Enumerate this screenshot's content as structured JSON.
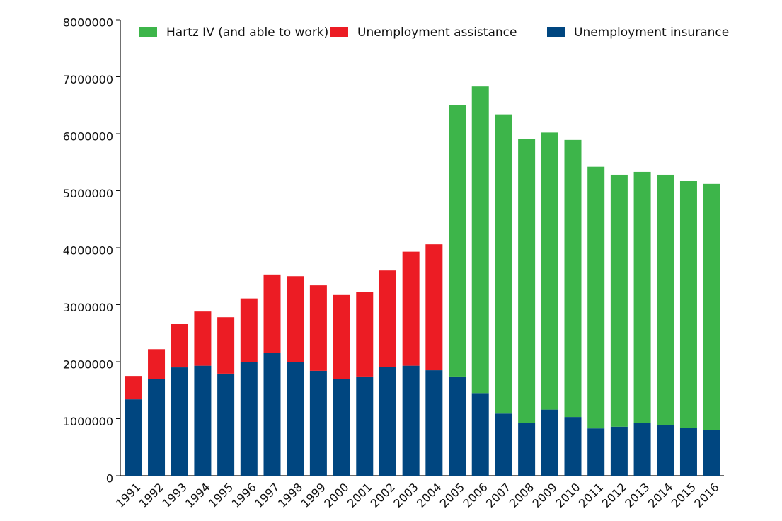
{
  "chart_data": {
    "type": "stacked_bar",
    "categories": [
      "1991",
      "1992",
      "1993",
      "1994",
      "1995",
      "1996",
      "1997",
      "1998",
      "1999",
      "2000",
      "2001",
      "2002",
      "2003",
      "2004",
      "2005",
      "2006",
      "2007",
      "2008",
      "2009",
      "2010",
      "2011",
      "2012",
      "2013",
      "2014",
      "2015",
      "2016"
    ],
    "series": [
      {
        "name": "Hartz IV (and able to work)",
        "color": "#3db54a",
        "values": [
          null,
          null,
          null,
          null,
          null,
          null,
          null,
          null,
          null,
          null,
          null,
          null,
          null,
          null,
          4760000,
          5380000,
          5250000,
          4990000,
          4860000,
          4860000,
          4590000,
          4420000,
          4410000,
          4390000,
          4340000,
          4320000
        ]
      },
      {
        "name": "Unemployment assistance",
        "color": "#ec1c24",
        "values": [
          410000,
          530000,
          760000,
          950000,
          990000,
          1110000,
          1370000,
          1500000,
          1500000,
          1470000,
          1480000,
          1690000,
          2000000,
          2210000,
          null,
          null,
          null,
          null,
          null,
          null,
          null,
          null,
          null,
          null,
          null,
          null
        ]
      },
      {
        "name": "Unemployment insurance",
        "color": "#004680",
        "values": [
          1340000,
          1690000,
          1900000,
          1930000,
          1790000,
          2000000,
          2160000,
          2000000,
          1840000,
          1700000,
          1740000,
          1910000,
          1930000,
          1850000,
          1740000,
          1450000,
          1090000,
          920000,
          1160000,
          1030000,
          830000,
          860000,
          920000,
          890000,
          840000,
          800000
        ]
      }
    ],
    "ylim": [
      0,
      8000000
    ],
    "yticks": [
      0,
      1000000,
      2000000,
      3000000,
      4000000,
      5000000,
      6000000,
      7000000,
      8000000
    ]
  }
}
